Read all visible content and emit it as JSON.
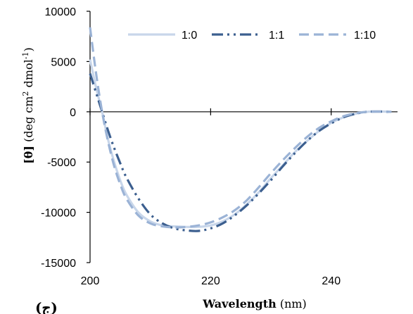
{
  "chart_data": {
    "type": "line",
    "xlabel_bold": "Wavelength",
    "xlabel_unit": "(nm)",
    "ylabel_bold": "[θ]",
    "ylabel_pre": "(deg cm",
    "ylabel_sup1": "2",
    "ylabel_mid": "dmol",
    "ylabel_sup2": "-1",
    "ylabel_post": ")",
    "panel_label": "(ج)",
    "xlim": [
      200,
      251
    ],
    "ylim": [
      -15000,
      10000
    ],
    "x_ticks": [
      200,
      220,
      240
    ],
    "y_ticks": [
      -15000,
      -10000,
      -5000,
      0,
      5000,
      10000
    ],
    "grid": false,
    "legend_position": "top-right",
    "series": [
      {
        "name": "1:0",
        "color": "#c8d6ea",
        "dash": "solid",
        "x": [
          200,
          201,
          202,
          203,
          204,
          205,
          206,
          208,
          210,
          212,
          214,
          216,
          218,
          220,
          222,
          224,
          226,
          228,
          230,
          232,
          234,
          236,
          238,
          240,
          242,
          244,
          246,
          248,
          250
        ],
        "y": [
          5200,
          2400,
          0,
          -2800,
          -5000,
          -6800,
          -8200,
          -10000,
          -10900,
          -11300,
          -11400,
          -11450,
          -11450,
          -11300,
          -10900,
          -10200,
          -9200,
          -8000,
          -6600,
          -5300,
          -4000,
          -2900,
          -1900,
          -1100,
          -550,
          -200,
          0,
          30,
          0
        ]
      },
      {
        "name": "1:1",
        "color": "#3c5f8f",
        "dash": "dashdotdot",
        "x": [
          200,
          201,
          202,
          203,
          204,
          205,
          206,
          208,
          210,
          212,
          214,
          216,
          218,
          220,
          222,
          224,
          226,
          228,
          230,
          232,
          234,
          236,
          238,
          240,
          242,
          244,
          246,
          248,
          250
        ],
        "y": [
          3800,
          1900,
          0,
          -1900,
          -3600,
          -5100,
          -6500,
          -8600,
          -10200,
          -11100,
          -11600,
          -11800,
          -11850,
          -11600,
          -11100,
          -10300,
          -9300,
          -8100,
          -6800,
          -5400,
          -4100,
          -2900,
          -1900,
          -1150,
          -550,
          -200,
          0,
          20,
          0
        ]
      },
      {
        "name": "1:10",
        "color": "#9bb3d6",
        "dash": "dashed",
        "x": [
          200,
          201,
          202,
          203,
          204,
          205,
          206,
          208,
          210,
          212,
          214,
          216,
          218,
          220,
          222,
          224,
          226,
          228,
          230,
          232,
          234,
          236,
          238,
          240,
          242,
          244,
          246,
          248,
          250
        ],
        "y": [
          8400,
          3800,
          0,
          -3000,
          -5400,
          -7200,
          -8600,
          -10300,
          -11100,
          -11400,
          -11500,
          -11450,
          -11300,
          -11000,
          -10500,
          -9800,
          -8800,
          -7500,
          -6100,
          -4800,
          -3600,
          -2500,
          -1600,
          -950,
          -450,
          -150,
          0,
          20,
          0
        ]
      }
    ]
  }
}
